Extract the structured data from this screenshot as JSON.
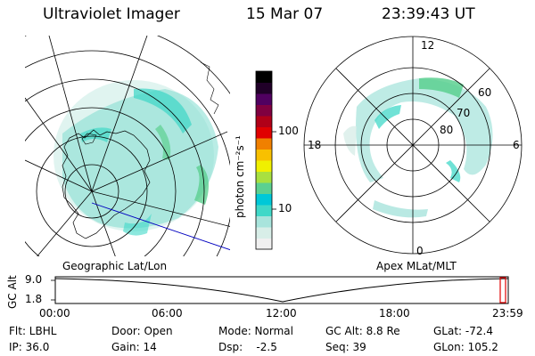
{
  "header": {
    "instrument": "Ultraviolet Imager",
    "date": "15 Mar 07",
    "time": "23:39:43 UT"
  },
  "left_panel": {
    "label": "Geographic Lat/Lon"
  },
  "right_panel": {
    "label": "Apex MLat/MLT",
    "mlt_labels": [
      "12",
      "18",
      "6",
      "0"
    ],
    "mlat_labels": [
      "60",
      "70",
      "80"
    ]
  },
  "colorbar": {
    "label": "photon cm⁻²s⁻¹",
    "ticks": [
      "100",
      "10"
    ],
    "colors": [
      "#f0f0f0",
      "#d8eee8",
      "#a8e4dc",
      "#40d8c8",
      "#00c8d8",
      "#5cd090",
      "#a8e040",
      "#f0f000",
      "#f8c000",
      "#f08000",
      "#e00000",
      "#b00018",
      "#800040",
      "#500060",
      "#200028",
      "#000000"
    ]
  },
  "timeline": {
    "ylabel": "GC Alt",
    "yticks": [
      "9.0",
      "1.8"
    ],
    "xticks": [
      "00:00",
      "06:00",
      "12:00",
      "18:00",
      "23:59"
    ],
    "marker_fraction": 0.985
  },
  "footer": {
    "flt": "Flt: LBHL",
    "ip": "IP: 36.0",
    "door": "Door: Open",
    "gain": "Gain: 14",
    "mode": "Mode: Normal",
    "dsp": "Dsp:    -2.5",
    "gc_alt": "GC Alt: 8.8 Re",
    "seq": "Seq: 39",
    "glat": "GLat: -72.4",
    "glon": "GLon: 105.2"
  },
  "colors": {
    "accent_marker": "#e00000",
    "coast_line": "#000000",
    "pole_line": "#0000c0"
  }
}
